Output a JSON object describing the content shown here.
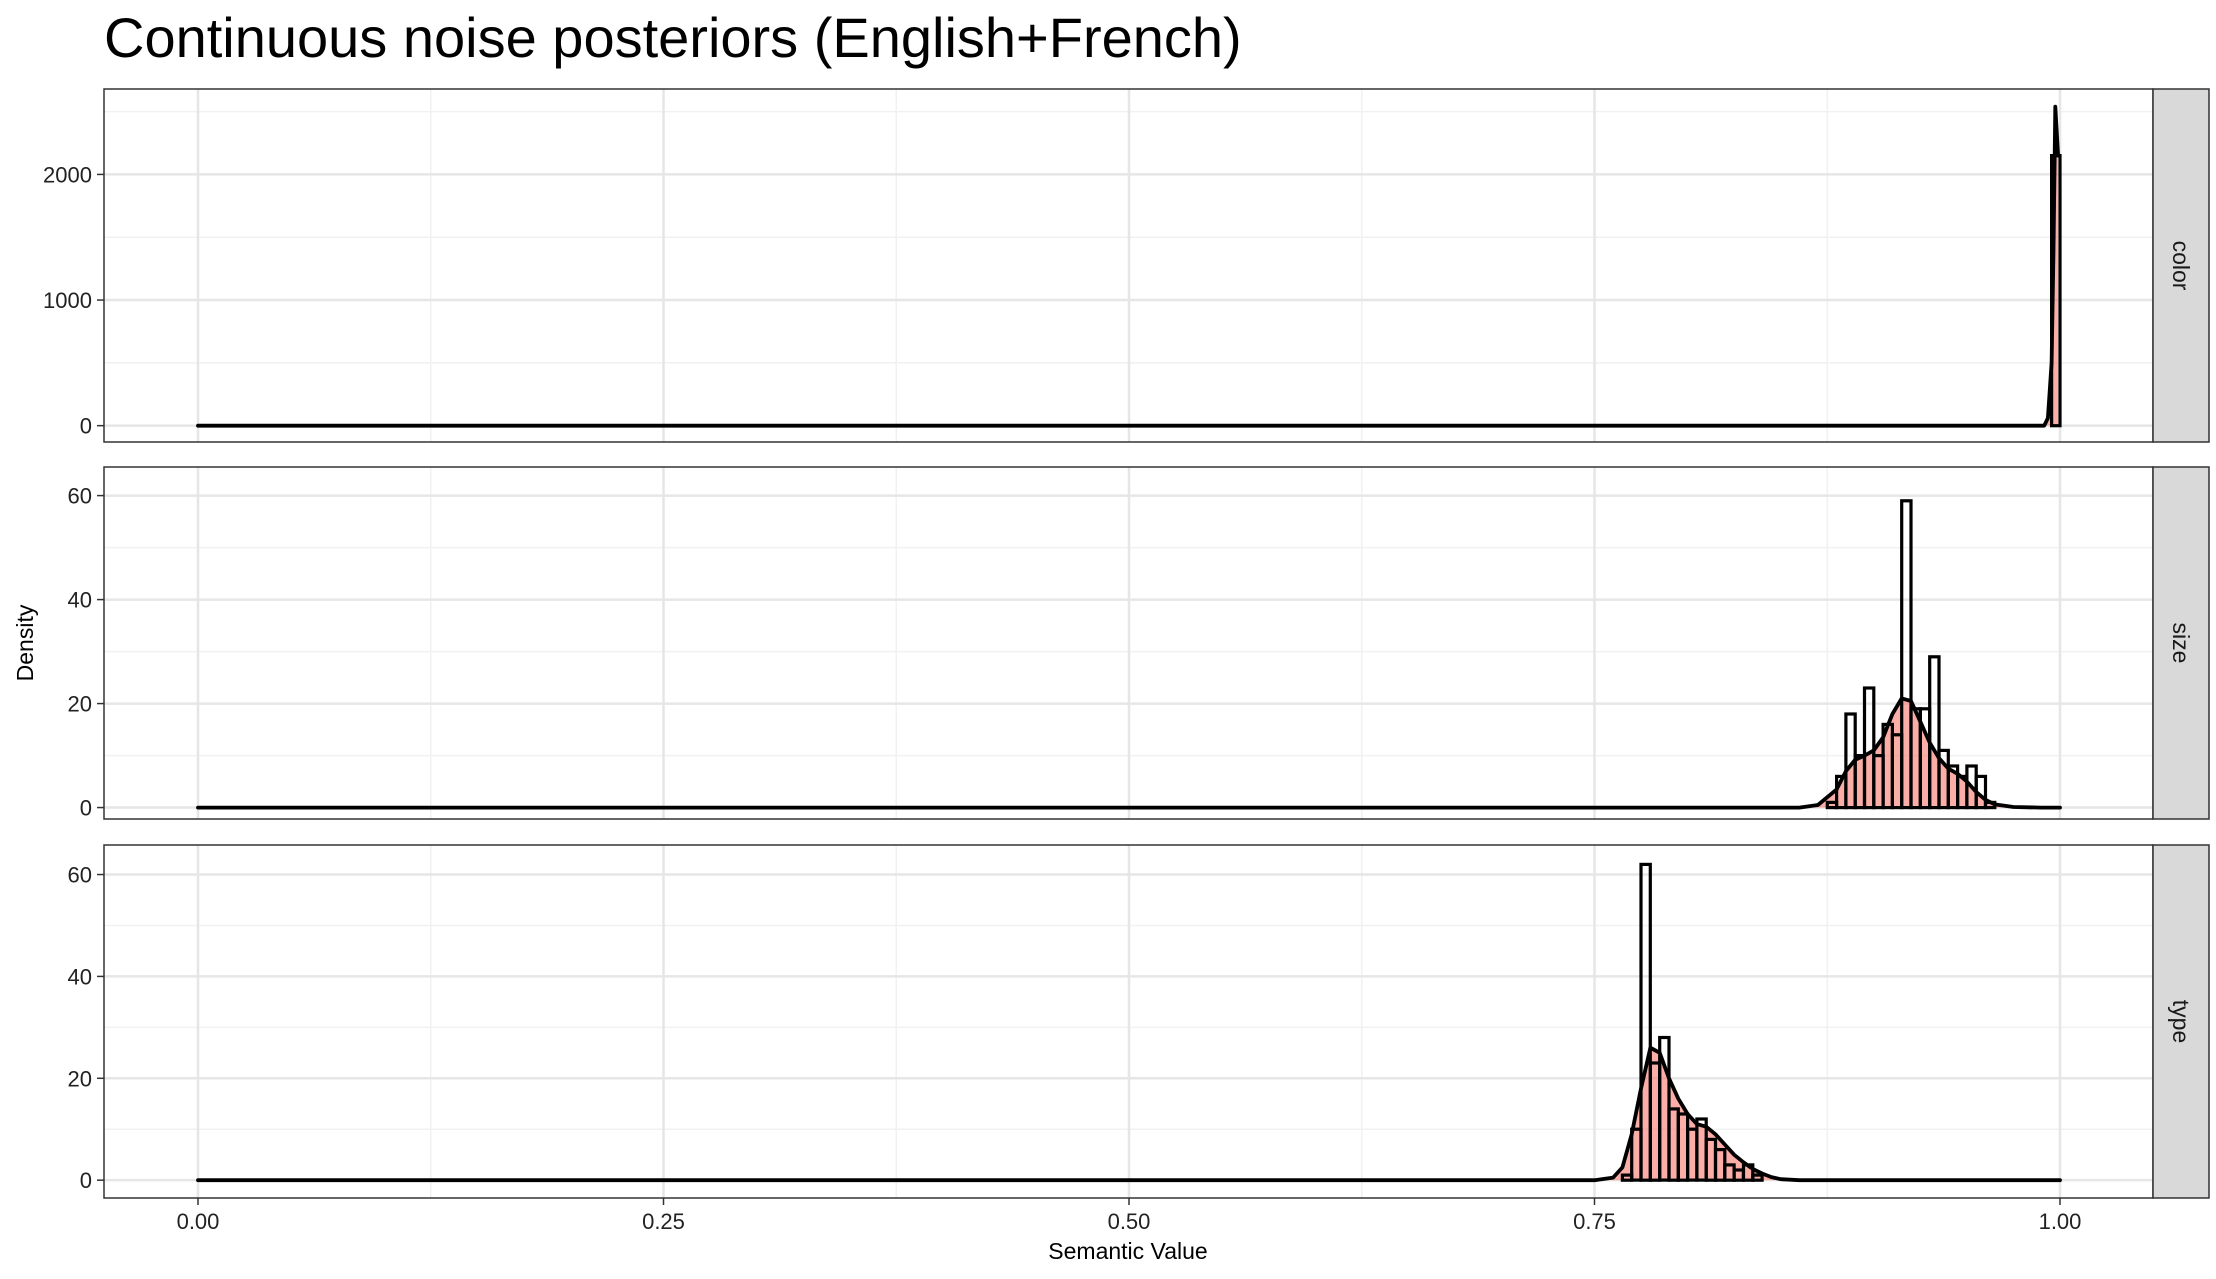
{
  "chart_data": {
    "type": "histogram+density",
    "title": "Continuous noise posteriors (English+French)",
    "xlabel": "Semantic Value",
    "ylabel": "Density",
    "xlim": [
      0,
      1
    ],
    "x_ticks": [
      0,
      0.25,
      0.5,
      0.75,
      1
    ],
    "x_tick_labels": [
      "0.00",
      "0.25",
      "0.50",
      "0.75",
      "1.00"
    ],
    "grid": true,
    "fill_color": "#F8766D",
    "line_color": "#000000",
    "panels": [
      {
        "label": "color",
        "ylim": [
          -130,
          2680
        ],
        "y_ticks": [
          0,
          1000,
          2000
        ],
        "y_tick_labels": [
          "0",
          "1000",
          "2000"
        ],
        "histogram": {
          "bin_start": 0.9955,
          "bin_width": 0.0045,
          "counts": [
            2150
          ]
        },
        "density": [
          [
            0,
            0
          ],
          [
            0.985,
            0
          ],
          [
            0.9915,
            0
          ],
          [
            0.9935,
            60
          ],
          [
            0.9955,
            500
          ],
          [
            0.9965,
            1400
          ],
          [
            0.9975,
            2540
          ],
          [
            0.999,
            2150
          ]
        ]
      },
      {
        "label": "size",
        "ylim": [
          -2.2,
          65.5
        ],
        "y_ticks": [
          0,
          20,
          40,
          60
        ],
        "y_tick_labels": [
          "0",
          "20",
          "40",
          "60"
        ],
        "histogram": {
          "bin_start": 0.875,
          "bin_width": 0.005,
          "counts": [
            1,
            6,
            18,
            10,
            23,
            10,
            16,
            14,
            59,
            19,
            19,
            29,
            11,
            8,
            6,
            8,
            6,
            1
          ]
        },
        "density": [
          [
            0,
            0
          ],
          [
            0.86,
            0
          ],
          [
            0.87,
            0.5
          ],
          [
            0.88,
            3.5
          ],
          [
            0.885,
            7
          ],
          [
            0.89,
            9.2
          ],
          [
            0.895,
            10
          ],
          [
            0.9,
            11
          ],
          [
            0.905,
            13.5
          ],
          [
            0.91,
            18
          ],
          [
            0.915,
            21
          ],
          [
            0.92,
            20.5
          ],
          [
            0.925,
            16.5
          ],
          [
            0.93,
            12.5
          ],
          [
            0.935,
            9.5
          ],
          [
            0.94,
            7.5
          ],
          [
            0.945,
            6.5
          ],
          [
            0.95,
            5
          ],
          [
            0.955,
            3
          ],
          [
            0.96,
            1.5
          ],
          [
            0.965,
            0.6
          ],
          [
            0.975,
            0.1
          ],
          [
            0.99,
            0
          ],
          [
            1.0,
            0
          ]
        ]
      },
      {
        "label": "type",
        "ylim": [
          -3.5,
          65.8
        ],
        "y_ticks": [
          0,
          20,
          40,
          60
        ],
        "y_tick_labels": [
          "0",
          "20",
          "40",
          "60"
        ],
        "histogram": {
          "bin_start": 0.765,
          "bin_width": 0.005,
          "counts": [
            1,
            10,
            62,
            23,
            28,
            14,
            13,
            10,
            12,
            8,
            6,
            3,
            2,
            3,
            1
          ]
        },
        "density": [
          [
            0,
            0
          ],
          [
            0.75,
            0
          ],
          [
            0.76,
            0.5
          ],
          [
            0.765,
            2.5
          ],
          [
            0.77,
            9
          ],
          [
            0.775,
            18
          ],
          [
            0.78,
            26
          ],
          [
            0.785,
            25
          ],
          [
            0.79,
            20
          ],
          [
            0.795,
            16
          ],
          [
            0.8,
            13
          ],
          [
            0.805,
            11
          ],
          [
            0.81,
            10.5
          ],
          [
            0.815,
            9
          ],
          [
            0.82,
            7
          ],
          [
            0.825,
            5
          ],
          [
            0.83,
            3.5
          ],
          [
            0.835,
            2.2
          ],
          [
            0.84,
            1.3
          ],
          [
            0.845,
            0.6
          ],
          [
            0.85,
            0.2
          ],
          [
            0.86,
            0
          ],
          [
            1.0,
            0
          ]
        ]
      }
    ]
  }
}
